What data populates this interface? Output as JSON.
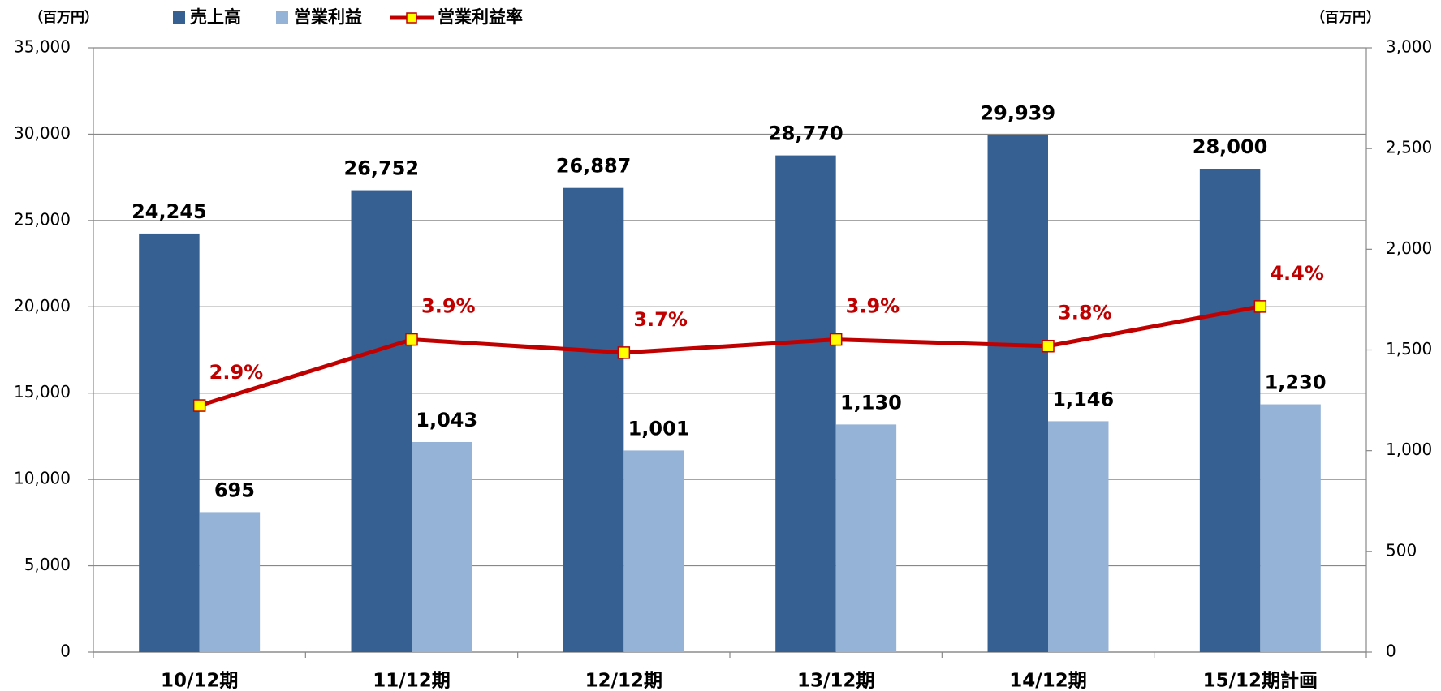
{
  "chart_data": {
    "type": "bar",
    "ylabel": "（百万円）",
    "y2label": "（百万円）",
    "categories": [
      "10/12期",
      "11/12期",
      "12/12期",
      "13/12期",
      "14/12期",
      "15/12期計画"
    ],
    "series": [
      {
        "name": "売上高",
        "color": "#376092",
        "values": [
          24245,
          26752,
          26887,
          28770,
          29939,
          28000
        ],
        "value_labels": [
          "24,245",
          "26,752",
          "26,887",
          "28,770",
          "29,939",
          "28,000"
        ]
      },
      {
        "name": "営業利益",
        "color": "#95b3d7",
        "axis": "y2",
        "values": [
          695,
          1043,
          1001,
          1130,
          1146,
          1230
        ],
        "value_labels": [
          "695",
          "1,043",
          "1,001",
          "1,130",
          "1,146",
          "1,230"
        ]
      },
      {
        "name": "営業利益率",
        "type": "line",
        "color": "#c00000",
        "marker_color": "#ffff00",
        "values": [
          2.9,
          3.9,
          3.7,
          3.9,
          3.8,
          4.4
        ],
        "value_labels": [
          "2.9%",
          "3.9%",
          "3.7%",
          "3.9%",
          "3.8%",
          "4.4%"
        ]
      }
    ],
    "ylim": [
      0,
      35000
    ],
    "yticks": [
      0,
      {
        "value": 5000,
        "label": "5,000"
      },
      {
        "value": 10000,
        "label": "10,000"
      },
      {
        "value": 15000,
        "label": "15,000"
      },
      {
        "value": 20000,
        "label": "20,000"
      },
      {
        "value": 25000,
        "label": "25,000"
      },
      {
        "value": 30000,
        "label": "30,000"
      },
      {
        "value": 35000,
        "label": "35,000"
      }
    ],
    "y2lim": [
      0,
      3000
    ],
    "y2ticks": [
      0,
      500,
      {
        "value": 1000,
        "label": "1,000"
      },
      {
        "value": 1500,
        "label": "1,500"
      },
      {
        "value": 2000,
        "label": "2,000"
      },
      {
        "value": 2500,
        "label": "2,500"
      },
      {
        "value": 3000,
        "label": "3,000"
      }
    ],
    "grid": true
  }
}
